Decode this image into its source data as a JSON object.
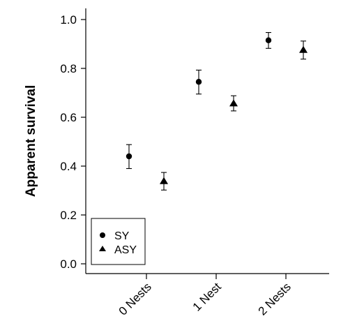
{
  "chart_data": {
    "type": "scatter",
    "title": "",
    "xlabel": "",
    "ylabel": "Apparent survival",
    "categories": [
      "0 Nests",
      "1 Nest",
      "2 Nests"
    ],
    "ylim": [
      0.0,
      1.0
    ],
    "yticks": [
      "0.0",
      "0.2",
      "0.4",
      "0.6",
      "0.8",
      "1.0"
    ],
    "grid": false,
    "legend_position": "bottom-left",
    "error_bars": true,
    "series": [
      {
        "name": "SY",
        "marker": "circle",
        "values": [
          0.44,
          0.745,
          0.915
        ],
        "lower": [
          0.39,
          0.695,
          0.882
        ],
        "upper": [
          0.488,
          0.793,
          0.947
        ]
      },
      {
        "name": "ASY",
        "marker": "triangle",
        "values": [
          0.338,
          0.656,
          0.875
        ],
        "lower": [
          0.302,
          0.626,
          0.838
        ],
        "upper": [
          0.374,
          0.688,
          0.912
        ]
      }
    ]
  }
}
